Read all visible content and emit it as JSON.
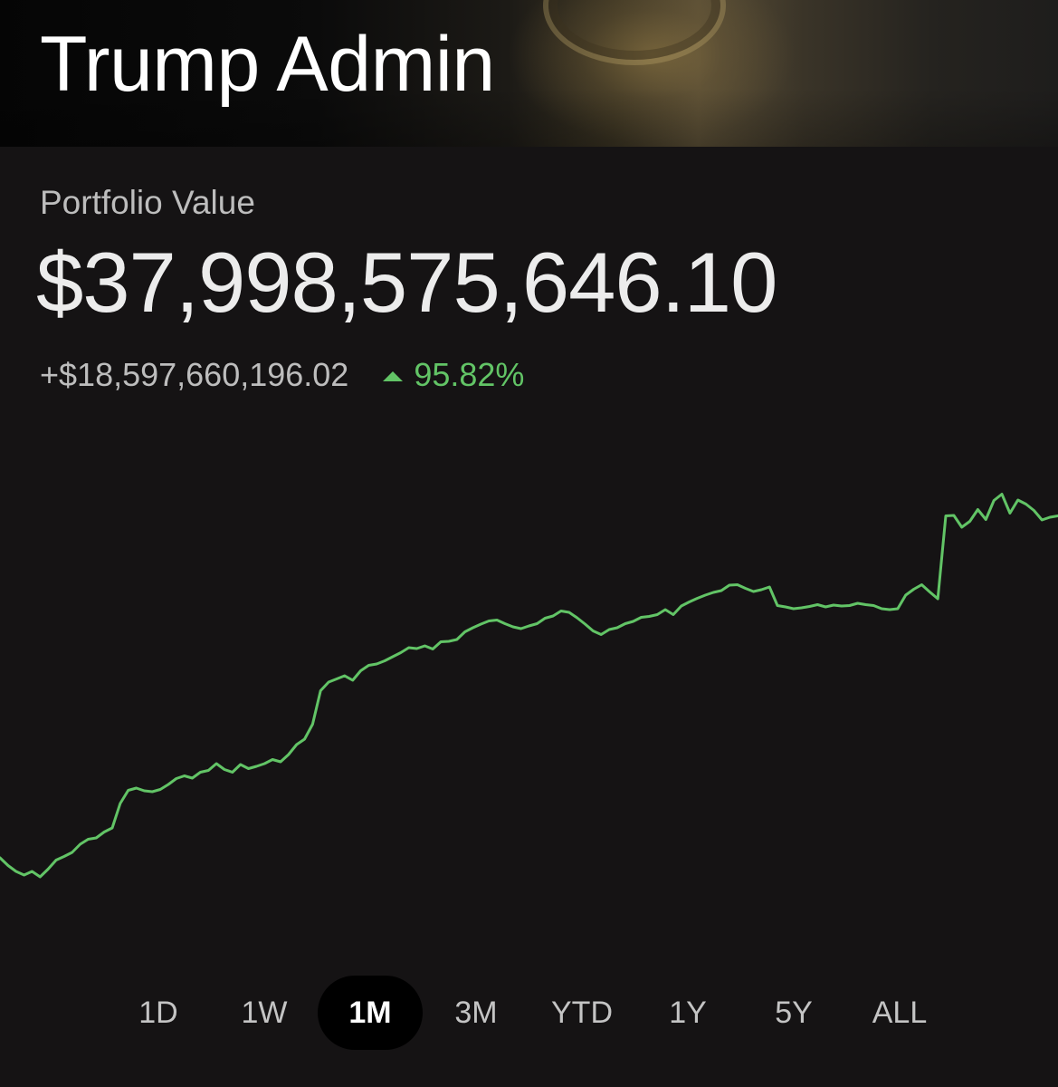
{
  "header": {
    "title": "Trump Admin"
  },
  "portfolio": {
    "label": "Portfolio Value",
    "value": "$37,998,575,646.10",
    "change_amount": "+$18,597,660,196.02",
    "change_percent": "95.82%",
    "trend": "up"
  },
  "colors": {
    "background": "#151314",
    "accent_green": "#62c466",
    "text_secondary": "#bdbdbd",
    "active_tab_bg": "#000000"
  },
  "range_tabs": [
    {
      "label": "1D",
      "active": false
    },
    {
      "label": "1W",
      "active": false
    },
    {
      "label": "1M",
      "active": true
    },
    {
      "label": "3M",
      "active": false
    },
    {
      "label": "YTD",
      "active": false
    },
    {
      "label": "1Y",
      "active": false
    },
    {
      "label": "5Y",
      "active": false
    },
    {
      "label": "ALL",
      "active": false
    }
  ],
  "chart_data": {
    "type": "line",
    "color": "#62c466",
    "axes_shown": false,
    "grid": false,
    "y_unit": "relative portfolio value (0-100)",
    "ylim": [
      0,
      100
    ],
    "series": [
      {
        "values": [
          12.6,
          10.9,
          9.6,
          8.8,
          9.6,
          8.4,
          10.1,
          12.1,
          12.9,
          13.8,
          15.6,
          16.7,
          17.0,
          18.3,
          19.2,
          24.6,
          27.5,
          28.0,
          27.4,
          27.2,
          27.7,
          28.8,
          30.1,
          30.7,
          30.2,
          31.5,
          31.9,
          33.4,
          32.1,
          31.5,
          33.2,
          32.3,
          32.8,
          33.4,
          34.3,
          33.8,
          35.4,
          37.6,
          38.8,
          42.1,
          49.5,
          51.4,
          52.1,
          52.8,
          51.8,
          53.9,
          55.1,
          55.4,
          56.1,
          57.0,
          57.9,
          59.0,
          58.8,
          59.4,
          58.7,
          60.3,
          60.4,
          60.8,
          62.5,
          63.4,
          64.2,
          64.9,
          65.1,
          64.3,
          63.6,
          63.2,
          63.8,
          64.3,
          65.5,
          66.0,
          67.1,
          66.8,
          65.6,
          64.2,
          62.7,
          61.9,
          63.0,
          63.4,
          64.3,
          64.8,
          65.7,
          65.9,
          66.3,
          67.4,
          66.3,
          68.2,
          69.1,
          69.9,
          70.6,
          71.2,
          71.6,
          72.8,
          72.9,
          72.1,
          71.4,
          71.8,
          72.4,
          68.3,
          68.0,
          67.6,
          67.8,
          68.1,
          68.5,
          68.0,
          68.4,
          68.2,
          68.3,
          68.8,
          68.5,
          68.3,
          67.6,
          67.4,
          67.6,
          70.6,
          71.9,
          72.9,
          71.3,
          69.8,
          88.1,
          88.2,
          85.6,
          86.9,
          89.5,
          87.3,
          91.5,
          92.9,
          88.7,
          91.6,
          90.7,
          89.3,
          87.2,
          87.8,
          88.1
        ]
      }
    ],
    "x_range": "1M"
  }
}
